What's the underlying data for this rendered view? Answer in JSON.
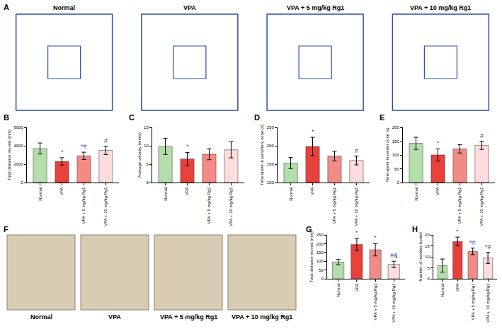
{
  "panel_a": {
    "label": "A",
    "titles": [
      "Normal",
      "VPA",
      "VPA + 5 mg/kg Rg1",
      "VPA + 10 mg/kg Rg1"
    ]
  },
  "chart_data": [
    {
      "label": "B",
      "type": "bar",
      "ylabel": "Total distance moved (mm)",
      "categories": [
        "Normal",
        "VPA",
        "VPA + 5 mg/kg Rg1",
        "VPA + 10 mg/kg Rg1"
      ],
      "values": [
        3700,
        2300,
        2900,
        3500
      ],
      "errors": [
        600,
        400,
        400,
        450
      ],
      "significance": [
        null,
        "*",
        "*#",
        "#"
      ],
      "colors": [
        "#b3deab",
        "#e8413c",
        "#f28b86",
        "#fcdcdc"
      ],
      "ylim": [
        0,
        6000
      ],
      "yticks": [
        0,
        2000,
        4000,
        6000
      ]
    },
    {
      "label": "C",
      "type": "bar",
      "ylabel": "Average velocity (mm/s)",
      "categories": [
        "Normal",
        "VPA",
        "VPA + 5 mg/kg Rg1",
        "VPA + 10 mg/kg Rg1"
      ],
      "values": [
        9.8,
        6.4,
        7.7,
        8.9
      ],
      "errors": [
        2.2,
        1.8,
        1.5,
        2.2
      ],
      "significance": [
        null,
        "*",
        null,
        null
      ],
      "colors": [
        "#b3deab",
        "#e8413c",
        "#f28b86",
        "#fcdcdc"
      ],
      "ylim": [
        0,
        15
      ],
      "yticks": [
        0,
        5,
        10,
        15
      ]
    },
    {
      "label": "D",
      "type": "bar",
      "ylabel": "Time spent in periphery zone (s)",
      "categories": [
        "Normal",
        "VPA",
        "VPA + 5 mg/kg Rg1",
        "VPA + 10 mg/kg Rg1"
      ],
      "values": [
        153,
        198,
        172,
        160
      ],
      "errors": [
        15,
        25,
        13,
        12
      ],
      "significance": [
        null,
        "*",
        null,
        "#"
      ],
      "colors": [
        "#b3deab",
        "#e8413c",
        "#f28b86",
        "#fcdcdc"
      ],
      "ylim": [
        100,
        250
      ],
      "yticks": [
        100,
        150,
        200,
        250
      ]
    },
    {
      "label": "E",
      "type": "bar",
      "ylabel": "Time spent in center zone (s)",
      "categories": [
        "Normal",
        "VPA",
        "VPA + 5 mg/kg Rg1",
        "VPA + 10 mg/kg Rg1"
      ],
      "values": [
        142,
        100,
        122,
        135
      ],
      "errors": [
        22,
        22,
        15,
        15
      ],
      "significance": [
        null,
        "*",
        null,
        "#"
      ],
      "colors": [
        "#b3deab",
        "#e8413c",
        "#f28b86",
        "#fcdcdc"
      ],
      "ylim": [
        0,
        200
      ],
      "yticks": [
        0,
        50,
        100,
        150,
        200
      ]
    },
    {
      "label": "G",
      "type": "bar",
      "ylabel": "Total distance moved (mm)",
      "categories": [
        "Normal",
        "VPA",
        "VPA + 5 mg/kg Rg1",
        "VPA + 10 mg/kg Rg1"
      ],
      "values": [
        95,
        195,
        165,
        82
      ],
      "errors": [
        15,
        35,
        35,
        18
      ],
      "significance": [
        null,
        "*",
        "*",
        "#&"
      ],
      "colors": [
        "#b3deab",
        "#e8413c",
        "#f28b86",
        "#fcdcdc"
      ],
      "ylim": [
        0,
        250
      ],
      "yticks": [
        0,
        50,
        100,
        150,
        200,
        250
      ]
    },
    {
      "label": "H",
      "type": "bar",
      "ylabel": "Number of marbles buried",
      "categories": [
        "Normal",
        "VPA",
        "VPA + 5 mg/kg Rg1",
        "VPA + 10 mg/kg Rg1"
      ],
      "values": [
        6,
        17,
        12.5,
        9.5
      ],
      "errors": [
        3,
        2,
        1.5,
        2.5
      ],
      "significance": [
        null,
        "*",
        "*#",
        "*#"
      ],
      "colors": [
        "#b3deab",
        "#e8413c",
        "#f28b86",
        "#fcdcdc"
      ],
      "ylim": [
        0,
        20
      ],
      "yticks": [
        0,
        5,
        10,
        15,
        20
      ]
    }
  ],
  "panel_f": {
    "label": "F",
    "titles": [
      "Normal",
      "VPA",
      "VPA + 5 mg/kg Rg1",
      "VPA + 10 mg/kg Rg1"
    ]
  }
}
